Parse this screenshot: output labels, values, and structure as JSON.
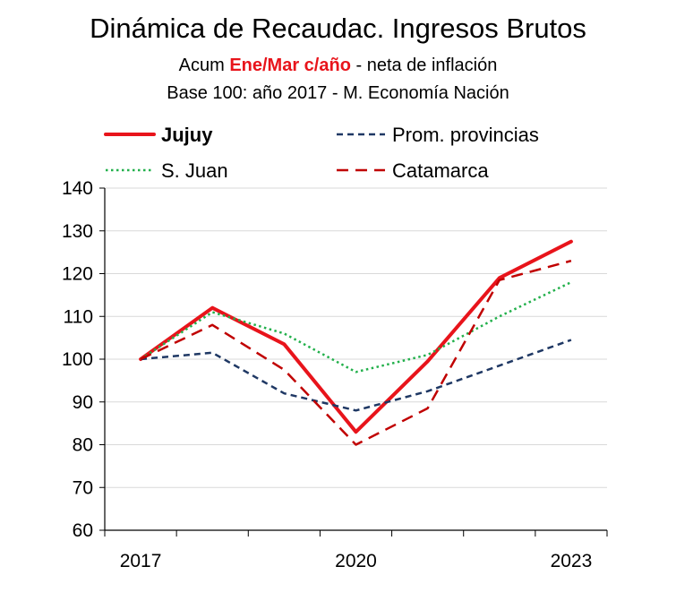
{
  "title": "Dinámica de Recaudac. Ingresos Brutos",
  "subtitle1": {
    "pre": "Acum ",
    "highlight": "Ene/Mar c/año",
    "post": " - neta de inflación"
  },
  "subtitle2": "Base 100: año 2017 - M. Economía Nación",
  "colors": {
    "jujuy": "#e8141b",
    "prom": "#1f3864",
    "sjuan": "#22b04b",
    "catamarca": "#c00000",
    "highlight": "#e8141b"
  },
  "chart_data": {
    "type": "line",
    "x": [
      2017,
      2018,
      2019,
      2020,
      2021,
      2022,
      2023
    ],
    "x_tick_labels": [
      "2017",
      "2020",
      "2023"
    ],
    "ylim": [
      60,
      140
    ],
    "y_ticks": [
      60,
      70,
      80,
      90,
      100,
      110,
      120,
      130,
      140
    ],
    "grid": true,
    "legend_position": "top",
    "series": [
      {
        "name": "Jujuy",
        "style": "solid-thick",
        "color": "#e8141b",
        "values": [
          100,
          112,
          103.5,
          83,
          99.5,
          119,
          127.5
        ]
      },
      {
        "name": "Prom. provincias",
        "style": "dashed-fine",
        "color": "#1f3864",
        "values": [
          100,
          101.5,
          92,
          88,
          92.5,
          98.5,
          104.5
        ]
      },
      {
        "name": "S. Juan",
        "style": "dotted",
        "color": "#22b04b",
        "values": [
          100,
          111,
          106,
          97,
          101,
          110,
          118
        ]
      },
      {
        "name": "Catamarca",
        "style": "dashed",
        "color": "#c00000",
        "values": [
          100,
          108,
          97.5,
          80,
          88.5,
          118.5,
          123
        ]
      }
    ]
  }
}
